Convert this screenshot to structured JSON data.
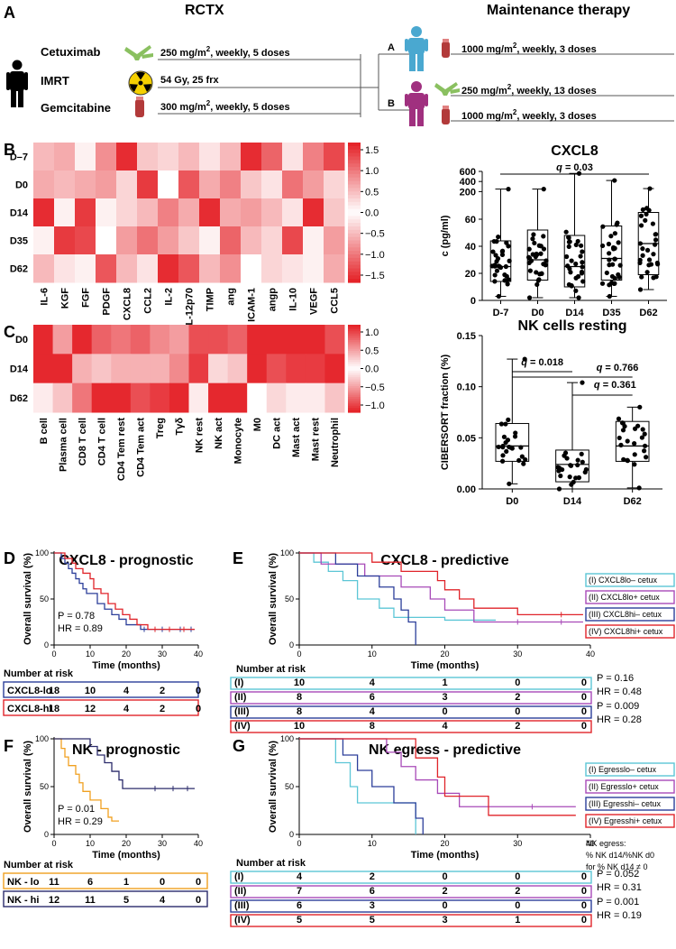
{
  "panelA": {
    "label": "A",
    "rctx_title": "RCTX",
    "maint_title": "Maintenance therapy",
    "drugs": [
      {
        "name": "Cetuximab",
        "dose_pre": "250 mg/m",
        "dose_sup": "2",
        "dose_post": ", weekly, 5 doses"
      },
      {
        "name": "IMRT",
        "dose_pre": "54 Gy, 25 frx",
        "dose_sup": "",
        "dose_post": ""
      },
      {
        "name": "Gemcitabine",
        "dose_pre": "300 mg/m",
        "dose_sup": "2",
        "dose_post": ", weekly, 5 doses"
      }
    ],
    "armA": {
      "label": "A",
      "doses": [
        {
          "pre": "1000 mg/m",
          "sup": "2",
          "post": ", weekly, 3 doses"
        }
      ]
    },
    "armB": {
      "label": "B",
      "doses": [
        {
          "pre": "250 mg/m",
          "sup": "2",
          "post": ", weekly, 13 doses"
        },
        {
          "pre": "1000 mg/m",
          "sup": "2",
          "post": ", weekly, 3 doses"
        }
      ]
    },
    "colors": {
      "armA": "#4aa8d0",
      "armB": "#a0307f",
      "gem": "#b23a3a",
      "cet": "#8ac060",
      "rad": "#f5d000"
    }
  },
  "panelB": {
    "label": "B",
    "heatmap": {
      "rows": [
        "D–7",
        "D0",
        "D14",
        "D35",
        "D62"
      ],
      "cols": [
        "IL-6",
        "KGF",
        "FGF",
        "PDGF",
        "CXCL8",
        "CCL2",
        "IL-2",
        "IL-12p70",
        "TIMP",
        "ang",
        "ICAM-1",
        "angp",
        "IL-10",
        "VEGF",
        "CCL5"
      ],
      "values": [
        [
          -0.5,
          -0.6,
          -0.1,
          0.8,
          -1.5,
          -0.4,
          0.3,
          0.5,
          -0.2,
          0.5,
          1.5,
          1.1,
          0.2,
          0.9,
          -1.3
        ],
        [
          -0.6,
          -0.5,
          -0.6,
          -0.7,
          -0.3,
          -1.4,
          0.0,
          1.2,
          -0.6,
          0.9,
          -0.4,
          0.2,
          1.0,
          0.7,
          0.3
        ],
        [
          1.5,
          -0.1,
          -1.4,
          -0.1,
          0.3,
          0.5,
          -0.9,
          -0.6,
          1.5,
          -0.6,
          -0.7,
          -0.5,
          0.2,
          -1.5,
          0.4
        ],
        [
          0.1,
          1.4,
          1.3,
          0.0,
          0.7,
          1.0,
          -0.7,
          -0.4,
          -0.1,
          -1.1,
          -0.5,
          -0.3,
          -1.3,
          -0.1,
          0.7
        ],
        [
          -0.5,
          0.2,
          0.1,
          -1.2,
          0.5,
          -0.2,
          1.5,
          -1.2,
          -0.5,
          -0.8,
          0.0,
          -0.3,
          -0.2,
          -0.1,
          -0.6
        ]
      ],
      "scale_ticks": [
        "1.5",
        "1.0",
        "0.5",
        "0.0",
        "−0.5",
        "−1.0",
        "−1.5"
      ],
      "vmin": -1.6,
      "vmax": 1.6
    }
  },
  "panelC": {
    "label": "C",
    "heatmap": {
      "rows": [
        "D0",
        "D14",
        "D62"
      ],
      "cols": [
        "B cell",
        "Plasma cell",
        "CD8 T cell",
        "CD4 T cell",
        "CD4 Tem rest",
        "CD4 Tem act",
        "Treg",
        "Tγδ",
        "NK rest",
        "NK act",
        "Monocyte",
        "M0",
        "DC act",
        "Mast act",
        "Mast rest",
        "Neutrophil"
      ],
      "values": [
        [
          1.1,
          -0.5,
          1.1,
          0.8,
          0.7,
          0.8,
          0.6,
          0.5,
          0.9,
          0.9,
          0.8,
          -1.1,
          -1.1,
          -1.1,
          -1.1,
          0.9
        ],
        [
          -1.1,
          1.1,
          -0.4,
          0.3,
          0.4,
          -0.4,
          0.4,
          0.6,
          -1.0,
          0.2,
          0.3,
          1.1,
          0.9,
          1.0,
          1.0,
          -1.1
        ],
        [
          0.1,
          -0.3,
          -0.7,
          -1.1,
          -1.1,
          -0.9,
          -1.0,
          -1.1,
          0.1,
          -1.1,
          -1.1,
          0.0,
          0.2,
          0.1,
          0.1,
          0.3
        ]
      ],
      "scale_ticks": [
        "1.0",
        "0.5",
        "0.0",
        "−0.5",
        "−1.0"
      ],
      "vmin": -1.15,
      "vmax": 1.15
    }
  },
  "chart_data": [
    {
      "id": "cxcl8-box",
      "type": "box",
      "title": "CXCL8",
      "ylabel": "c (pg/ml)",
      "categories": [
        "D-7",
        "D0",
        "D14",
        "D35",
        "D62"
      ],
      "y_ticks_lower": [
        "0",
        "20",
        "40",
        "60"
      ],
      "y_ticks_upper": [
        "200",
        "400",
        "600"
      ],
      "boxes": [
        {
          "min": 3,
          "q1": 14,
          "median": 25,
          "q3": 44,
          "max": 250
        },
        {
          "min": 2,
          "q1": 15,
          "median": 30,
          "q3": 52,
          "max": 250
        },
        {
          "min": 2,
          "q1": 10,
          "median": 25,
          "q3": 48,
          "max": 560
        },
        {
          "min": 3,
          "q1": 15,
          "median": 31,
          "q3": 55,
          "max": 420
        },
        {
          "min": 8,
          "q1": 19,
          "median": 42,
          "q3": 65,
          "max": 260
        }
      ],
      "annotation": "q = 0.03",
      "annotation_q": "q",
      "annotation_val": " = 0.03"
    },
    {
      "id": "nk-box",
      "type": "box",
      "title": "NK cells resting",
      "ylabel": "CIBERSORT fraction (%)",
      "categories": [
        "D0",
        "D14",
        "D62"
      ],
      "y_ticks": [
        "0.00",
        "0.05",
        "0.10",
        "0.15"
      ],
      "ylim": [
        0,
        0.15
      ],
      "boxes": [
        {
          "min": 0.005,
          "q1": 0.027,
          "median": 0.042,
          "q3": 0.064,
          "max": 0.127
        },
        {
          "min": 0.0,
          "q1": 0.007,
          "median": 0.024,
          "q3": 0.038,
          "max": 0.104
        },
        {
          "min": 0.001,
          "q1": 0.027,
          "median": 0.042,
          "q3": 0.066,
          "max": 0.08
        }
      ],
      "annotations": [
        {
          "q": "q",
          "val": " = 0.018"
        },
        {
          "q": "q",
          "val": " = 0.766"
        },
        {
          "q": "q",
          "val": " = 0.361"
        }
      ]
    },
    {
      "id": "km-d",
      "type": "km",
      "panel": "D",
      "title": "CXCL8 - prognostic",
      "ylabel": "Overall survival (%)",
      "xlabel": "Time (months)",
      "x_ticks": [
        "0",
        "10",
        "20",
        "30",
        "40"
      ],
      "y_ticks": [
        "0",
        "50",
        "100"
      ],
      "stats": [
        "P = 0.78",
        "HR = 0.89"
      ],
      "risk_title": "Number at risk",
      "risk_rows": [
        {
          "label": "CXCL8-lo",
          "values": [
            "18",
            "10",
            "4",
            "2",
            "0"
          ]
        },
        {
          "label": "CXCL8-hi",
          "values": [
            "18",
            "12",
            "4",
            "2",
            "0"
          ]
        }
      ]
    },
    {
      "id": "km-e",
      "type": "km",
      "panel": "E",
      "title": "CXCL8 - predictive",
      "ylabel": "Overall survival (%)",
      "xlabel": "Time (months)",
      "x_ticks": [
        "0",
        "10",
        "20",
        "30",
        "40"
      ],
      "y_ticks": [
        "0",
        "50",
        "100"
      ],
      "legend": [
        "(I) CXCL8lo– cetux",
        "(II) CXCL8lo+ cetux",
        "(III) CXCL8hi– cetux",
        "(IV) CXCL8hi+ cetux"
      ],
      "stats": [
        "P = 0.16",
        "HR = 0.48",
        "P = 0.009",
        "HR = 0.28"
      ],
      "risk_title": "Number at risk",
      "risk_rows": [
        {
          "label": "(I)",
          "values": [
            "10",
            "4",
            "1",
            "0"
          ]
        },
        {
          "label": "(II)",
          "values": [
            "8",
            "6",
            "3",
            "2"
          ]
        },
        {
          "label": "(III)",
          "values": [
            "8",
            "4",
            "0",
            "0"
          ]
        },
        {
          "label": "(IV)",
          "values": [
            "10",
            "8",
            "4",
            "2"
          ]
        }
      ],
      "risk_end": "0"
    },
    {
      "id": "km-f",
      "type": "km",
      "panel": "F",
      "title": "NK - prognostic",
      "ylabel": "Overall survival (%)",
      "xlabel": "Time (months)",
      "x_ticks": [
        "0",
        "10",
        "20",
        "30",
        "40"
      ],
      "y_ticks": [
        "0",
        "50",
        "100"
      ],
      "stats": [
        "P = 0.01",
        "HR = 0.29"
      ],
      "risk_title": "Number at risk",
      "risk_rows": [
        {
          "label": "NK - lo",
          "values": [
            "11",
            "6",
            "1",
            "0",
            "0"
          ]
        },
        {
          "label": "NK - hi",
          "values": [
            "12",
            "11",
            "5",
            "4",
            "0"
          ]
        }
      ]
    },
    {
      "id": "km-g",
      "type": "km",
      "panel": "G",
      "title": "NK egress - predictive",
      "ylabel": "Overall survival (%)",
      "xlabel": "Time (months)",
      "x_ticks": [
        "0",
        "10",
        "20",
        "30",
        "40"
      ],
      "y_ticks": [
        "0",
        "50",
        "100"
      ],
      "legend": [
        "(I) Egresslo– cetux",
        "(II) Egresslo+ cetux",
        "(III) Egresshi– cetux",
        "(IV) Egresshi+ cetux"
      ],
      "note": [
        "NK egress:",
        "% NK d14/%NK d0",
        "for % NK d14 ≠ 0"
      ],
      "stats": [
        "P = 0.052",
        "HR = 0.31",
        "P = 0.001",
        "HR = 0.19"
      ],
      "risk_title": "Number at risk",
      "risk_rows": [
        {
          "label": "(I)",
          "values": [
            "4",
            "2",
            "0",
            "0"
          ]
        },
        {
          "label": "(II)",
          "values": [
            "7",
            "6",
            "2",
            "2"
          ]
        },
        {
          "label": "(III)",
          "values": [
            "6",
            "3",
            "0",
            "0"
          ]
        },
        {
          "label": "(IV)",
          "values": [
            "5",
            "5",
            "3",
            "1"
          ]
        }
      ],
      "risk_end": "0"
    }
  ],
  "labels": {
    "D": "D",
    "E": "E",
    "F": "F",
    "G": "G"
  },
  "colors": {
    "teal": "#5cc6d6",
    "purple": "#a84ab8",
    "navy": "#2c3f9a",
    "red": "#e0242a",
    "orange": "#f0a020",
    "dark": "#2b2b6b",
    "gray": "#555555"
  }
}
